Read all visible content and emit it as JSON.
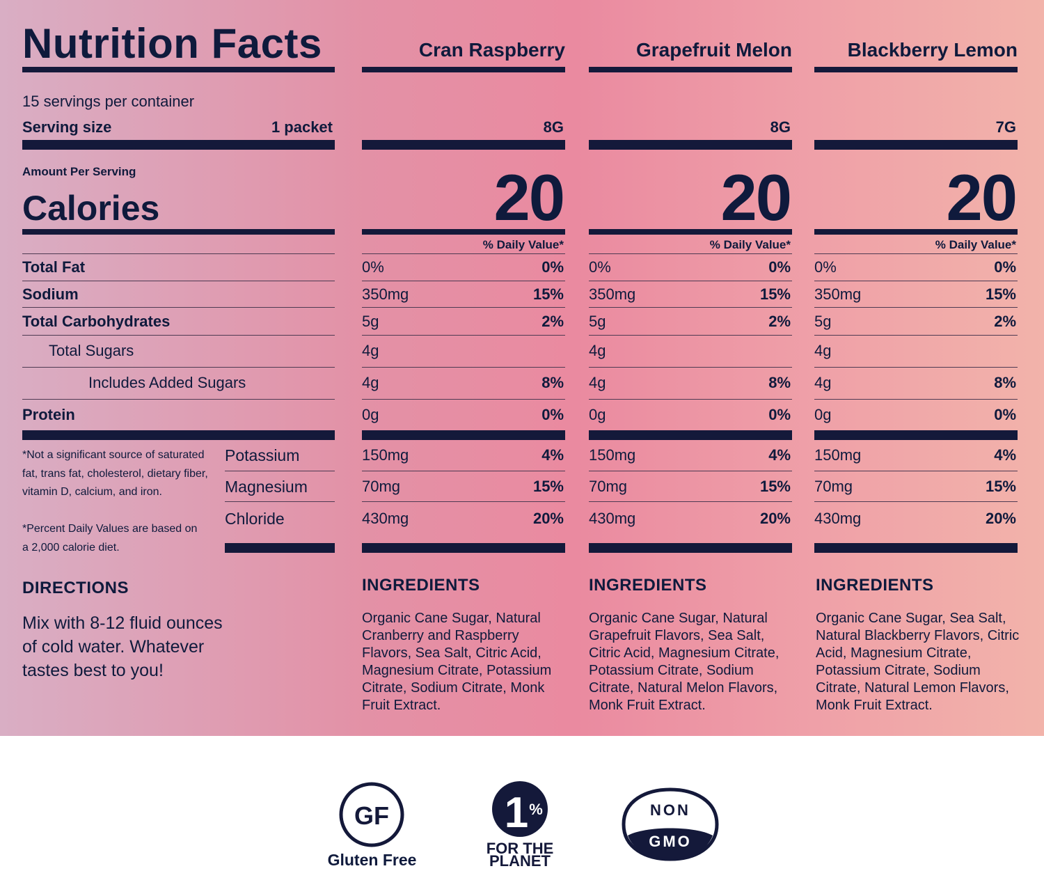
{
  "header": {
    "title": "Nutrition Facts",
    "flavors": [
      "Cran Raspberry",
      "Grapefruit Melon",
      "Blackberry Lemon"
    ]
  },
  "servings": {
    "per_container": "15 servings per container",
    "size_label": "Serving size",
    "size_value": "1 packet",
    "weights": [
      "8G",
      "8G",
      "7G"
    ]
  },
  "calories": {
    "amount_label": "Amount Per Serving",
    "label": "Calories",
    "values": [
      "20",
      "20",
      "20"
    ],
    "dv_label": "% Daily Value*"
  },
  "nutrients": [
    {
      "label": "Total Fat",
      "cols": [
        {
          "amt": "0%",
          "dv": "0%"
        },
        {
          "amt": "0%",
          "dv": "0%"
        },
        {
          "amt": "0%",
          "dv": "0%"
        }
      ]
    },
    {
      "label": "Sodium",
      "cols": [
        {
          "amt": "350mg",
          "dv": "15%"
        },
        {
          "amt": "350mg",
          "dv": "15%"
        },
        {
          "amt": "350mg",
          "dv": "15%"
        }
      ]
    },
    {
      "label": "Total Carbohydrates",
      "cols": [
        {
          "amt": "5g",
          "dv": "2%"
        },
        {
          "amt": "5g",
          "dv": "2%"
        },
        {
          "amt": "5g",
          "dv": "2%"
        }
      ]
    },
    {
      "label": "Total Sugars",
      "cols": [
        {
          "amt": "4g",
          "dv": ""
        },
        {
          "amt": "4g",
          "dv": ""
        },
        {
          "amt": "4g",
          "dv": ""
        }
      ]
    },
    {
      "label": "Includes Added Sugars",
      "cols": [
        {
          "amt": "4g",
          "dv": "8%"
        },
        {
          "amt": "4g",
          "dv": "8%"
        },
        {
          "amt": "4g",
          "dv": "8%"
        }
      ]
    },
    {
      "label": "Protein",
      "cols": [
        {
          "amt": "0g",
          "dv": "0%"
        },
        {
          "amt": "0g",
          "dv": "0%"
        },
        {
          "amt": "0g",
          "dv": "0%"
        }
      ]
    }
  ],
  "minerals": [
    {
      "label": "Potassium",
      "cols": [
        {
          "amt": "150mg",
          "dv": "4%"
        },
        {
          "amt": "150mg",
          "dv": "4%"
        },
        {
          "amt": "150mg",
          "dv": "4%"
        }
      ]
    },
    {
      "label": "Magnesium",
      "cols": [
        {
          "amt": "70mg",
          "dv": "15%"
        },
        {
          "amt": "70mg",
          "dv": "15%"
        },
        {
          "amt": "70mg",
          "dv": "15%"
        }
      ]
    },
    {
      "label": "Chloride",
      "cols": [
        {
          "amt": "430mg",
          "dv": "20%"
        },
        {
          "amt": "430mg",
          "dv": "20%"
        },
        {
          "amt": "430mg",
          "dv": "20%"
        }
      ]
    }
  ],
  "footnotes": {
    "not_significant": "*Not a significant source of saturated fat, trans fat, cholesterol, dietary fiber, vitamin D, calcium, and iron.",
    "percent_dv": "*Percent Daily Values are based on a 2,000 calorie diet."
  },
  "directions": {
    "heading": "DIRECTIONS",
    "text": "Mix with 8-12 fluid ounces of cold water. Whatever tastes best to you!"
  },
  "ingredients": {
    "heading": "INGREDIENTS",
    "lists": [
      "Organic Cane Sugar, Natural Cranberry and Raspberry Flavors, Sea Salt, Citric Acid, Magnesium Citrate, Potassium Citrate, Sodium Citrate, Monk Fruit Extract.",
      "Organic Cane Sugar, Natural Grapefruit Flavors, Sea Salt, Citric Acid, Magnesium Citrate, Potassium Citrate, Sodium Citrate, Natural Melon Flavors, Monk Fruit Extract.",
      "Organic Cane Sugar, Sea Salt, Natural Blackberry Flavors, Citric Acid, Magnesium Citrate, Potassium Citrate, Sodium Citrate, Natural Lemon Flavors, Monk Fruit Extract."
    ]
  },
  "badges": {
    "gf_mark": "GF",
    "gf_label": "Gluten Free",
    "planet_mark": "1",
    "planet_pct": "%",
    "planet_line1": "FOR THE",
    "planet_line2": "PLANET",
    "gmo_top": "NON",
    "gmo_bottom": "GMO"
  },
  "colors": {
    "ink": "#14193a",
    "panel_left": "#d9aec4",
    "panel_right": "#f2b3aa"
  }
}
